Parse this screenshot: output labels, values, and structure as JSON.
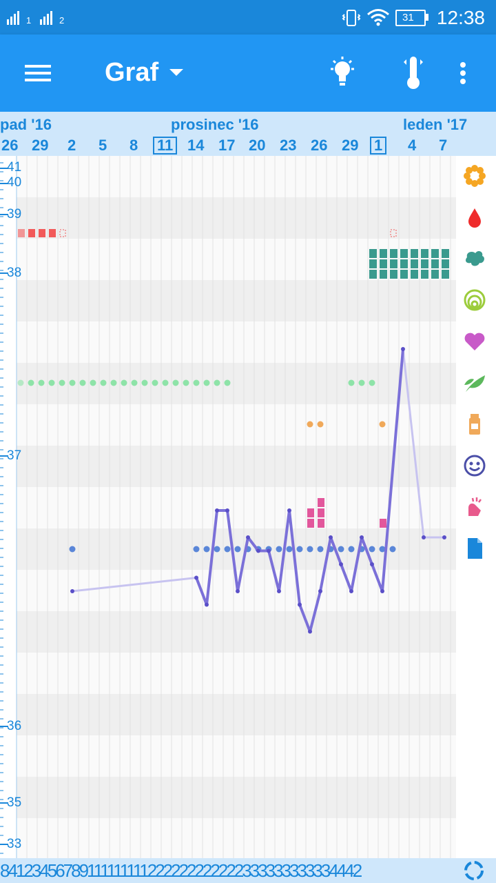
{
  "status": {
    "time": "12:38",
    "battery": "31",
    "sim1": "1",
    "sim2": "2"
  },
  "appbar": {
    "title": "Graf",
    "icons": [
      "menu-icon",
      "dropdown-caret-icon",
      "lightbulb-icon",
      "thermometer-icon",
      "more-vert-icon"
    ]
  },
  "timeline": {
    "months": [
      "pad '16",
      "prosinec '16",
      "leden '17"
    ],
    "days": [
      "26",
      "29",
      "2",
      "5",
      "8",
      "11",
      "14",
      "17",
      "20",
      "23",
      "26",
      "29",
      "1",
      "4",
      "7"
    ],
    "highlighted_days": [
      "11",
      "1"
    ]
  },
  "chart_data": {
    "type": "line",
    "title": "",
    "ylabel": "",
    "yticks": [
      "41",
      "40",
      "39",
      "38",
      "37",
      "36",
      "35",
      "33"
    ],
    "series": [
      {
        "values": [
          36.55,
          36.6,
          36.5,
          36.85,
          36.85,
          36.55,
          36.75,
          36.7,
          36.7,
          36.55,
          36.85,
          36.5,
          36.4,
          36.55,
          36.75,
          36.65,
          36.55,
          36.75,
          36.65,
          36.55,
          37.45,
          36.75,
          36.75
        ]
      }
    ],
    "markers": {
      "red_squares_color": "#f25a5a",
      "teal_blocks_color": "#3a9a8e",
      "green_dots_color": "#8ee3a8",
      "orange_dots_color": "#f0a95a",
      "pink_blocks_color": "#e2579c",
      "blue_dots_color": "#5a86d8",
      "line_color": "#7b70d8"
    }
  },
  "side_icons": [
    "flower-icon",
    "blood-drop-icon",
    "splash-icon",
    "rings-icon",
    "heart-icon",
    "leaf-icon",
    "pill-bottle-icon",
    "smiley-icon",
    "hand-icon",
    "document-icon"
  ],
  "bottom_numbers": "84123456789111111111222222222222333333333334442",
  "colors": {
    "primary": "#2196f3",
    "status": "#1a87da",
    "accent_light": "#cfe7fb"
  }
}
